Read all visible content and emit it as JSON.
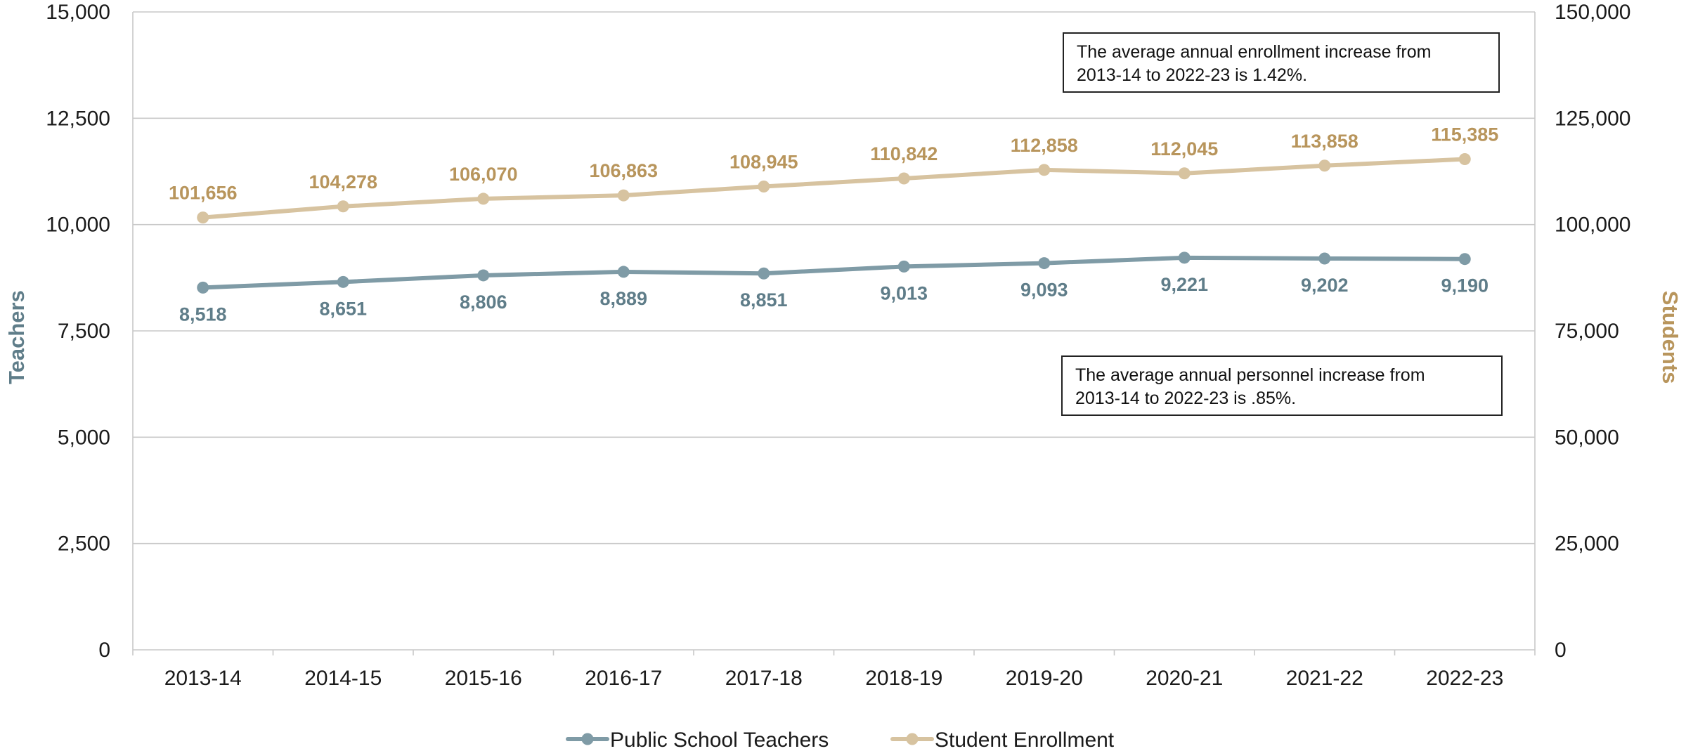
{
  "chart_data": {
    "type": "line",
    "categories": [
      "2013-14",
      "2014-15",
      "2015-16",
      "2016-17",
      "2017-18",
      "2018-19",
      "2019-20",
      "2020-21",
      "2021-22",
      "2022-23"
    ],
    "series": [
      {
        "name": "Public School Teachers",
        "axis": "left",
        "color": "#7f9ba6",
        "label_color": "#5f7d89",
        "values": [
          8518,
          8651,
          8806,
          8889,
          8851,
          9013,
          9093,
          9221,
          9202,
          9190
        ],
        "labels": [
          "8,518",
          "8,651",
          "8,806",
          "8,889",
          "8,851",
          "9,013",
          "9,093",
          "9,221",
          "9,202",
          "9,190"
        ]
      },
      {
        "name": "Student Enrollment",
        "axis": "right",
        "color": "#d7c3a0",
        "label_color": "#b8955c",
        "values": [
          101656,
          104278,
          106070,
          106863,
          108945,
          110842,
          112858,
          112045,
          113858,
          115385
        ],
        "labels": [
          "101,656",
          "104,278",
          "106,070",
          "106,863",
          "108,945",
          "110,842",
          "112,858",
          "112,045",
          "113,858",
          "115,385"
        ]
      }
    ],
    "y_left": {
      "label": "Teachers",
      "ylim": [
        0,
        15000
      ],
      "ticks": [
        "0",
        "2,500",
        "5,000",
        "7,500",
        "10,000",
        "12,500",
        "15,000"
      ]
    },
    "y_right": {
      "label": "Students",
      "ylim": [
        0,
        150000
      ],
      "ticks": [
        "0",
        "25,000",
        "50,000",
        "75,000",
        "100,000",
        "125,000",
        "150,000"
      ]
    },
    "grid": true,
    "legend_position": "bottom-center",
    "annotations": [
      {
        "lines": [
          "The average annual enrollment increase from",
          "2013-14 to 2022-23 is 1.42%."
        ]
      },
      {
        "lines": [
          "The average annual personnel increase from",
          "2013-14 to 2022-23 is .85%."
        ]
      }
    ]
  }
}
